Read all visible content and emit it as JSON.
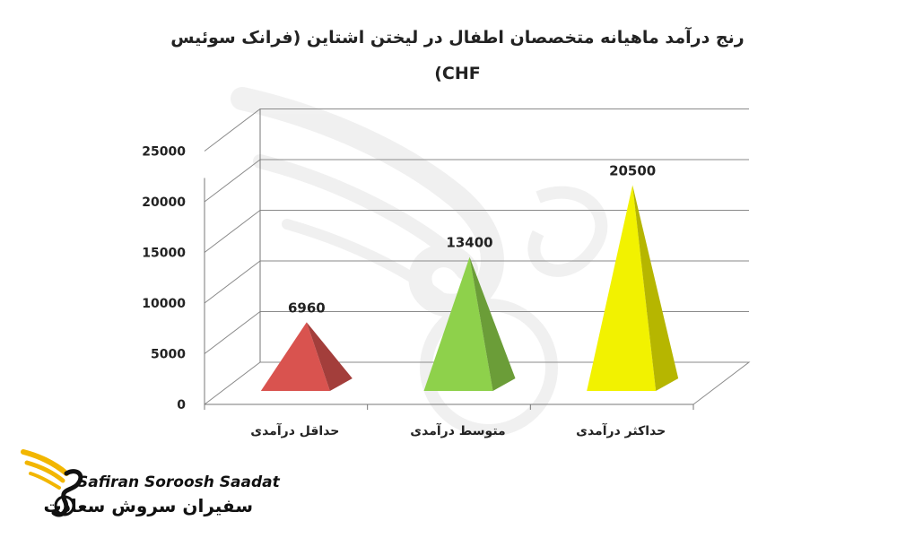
{
  "chart_data": {
    "type": "bar",
    "style": "3d-pyramid",
    "title": "رنج درآمد ماهیانه متخصصان اطفال در لیختن اشتاین (فرانک سوئیس CHF)",
    "categories": [
      "حداقل درآمدی",
      "متوسط درآمدی",
      "حداکثر درآمدی"
    ],
    "values": [
      6960,
      13400,
      20500
    ],
    "data_labels": [
      "6960",
      "13400",
      "20500"
    ],
    "colors": [
      "#d9534f",
      "#8ed14b",
      "#f2f200"
    ],
    "yticks": [
      "0",
      "5000",
      "10000",
      "15000",
      "20000",
      "25000"
    ],
    "ylim": [
      0,
      25000
    ],
    "grid": true,
    "legend": "none",
    "xlabel": "",
    "ylabel": ""
  },
  "logo": {
    "name_en": "Safiran Soroosh Saadat",
    "name_fa": "سفیران سروش سعادت"
  }
}
